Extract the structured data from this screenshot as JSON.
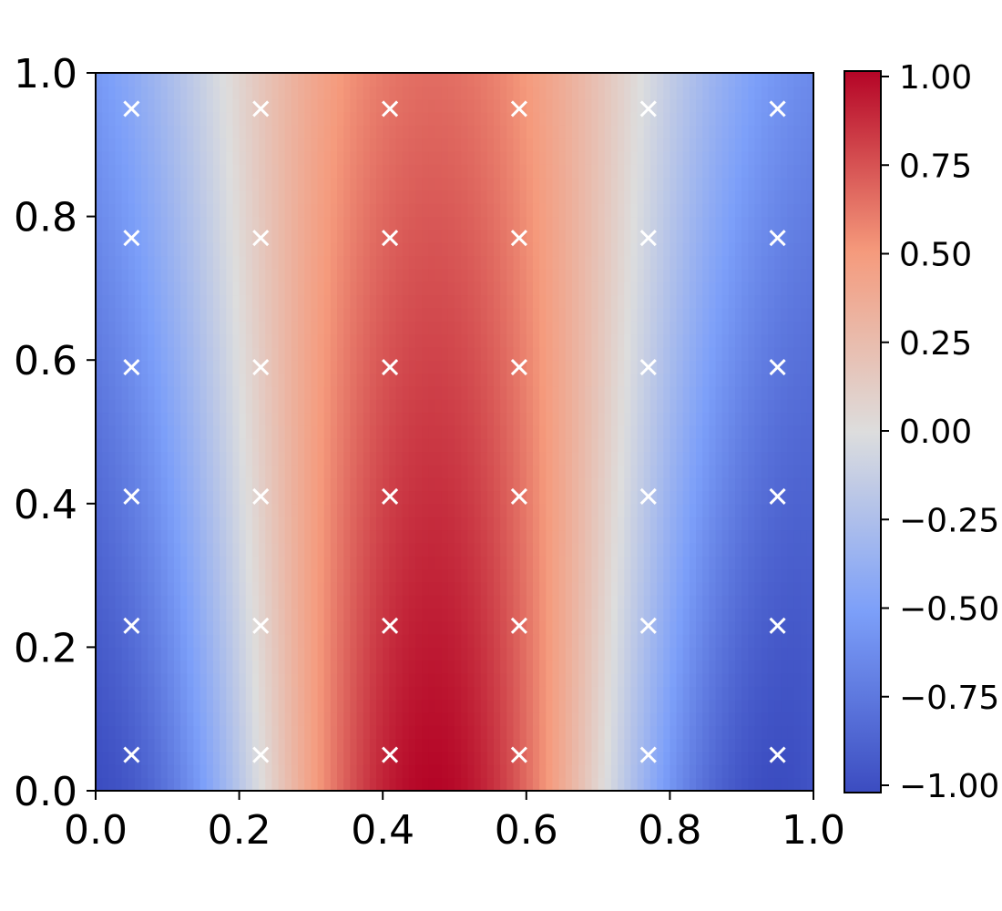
{
  "chart_data": {
    "type": "heatmap",
    "title": "",
    "xlabel": "",
    "ylabel": "",
    "xlim": [
      0.0,
      1.0
    ],
    "ylim": [
      0.0,
      1.0
    ],
    "x_ticks": [
      "0.0",
      "0.2",
      "0.4",
      "0.6",
      "0.8",
      "1.0"
    ],
    "y_ticks": [
      "0.0",
      "0.2",
      "0.4",
      "0.6",
      "0.8",
      "1.0"
    ],
    "grid": false,
    "colormap": "coolwarm",
    "colorbar": {
      "range": [
        -1.0,
        1.0
      ],
      "ticks": [
        1.0,
        0.75,
        0.5,
        0.25,
        0.0,
        -0.25,
        -0.5,
        -0.75,
        -1.0
      ],
      "tick_labels": [
        "1.00",
        "0.75",
        "0.50",
        "0.25",
        "0.00",
        "−0.25",
        "−0.50",
        "−0.75",
        "−1.00"
      ]
    },
    "field": {
      "description_x_peak": 0.47,
      "value_at_bottom_center": 1.0,
      "value_at_bottom_edges": -1.0
    },
    "marker_style": "x",
    "marker_color": "#ffffff",
    "markers_x": [
      0.05,
      0.23,
      0.41,
      0.59,
      0.77,
      0.95
    ],
    "markers_y": [
      0.05,
      0.23,
      0.41,
      0.59,
      0.77,
      0.95
    ]
  }
}
